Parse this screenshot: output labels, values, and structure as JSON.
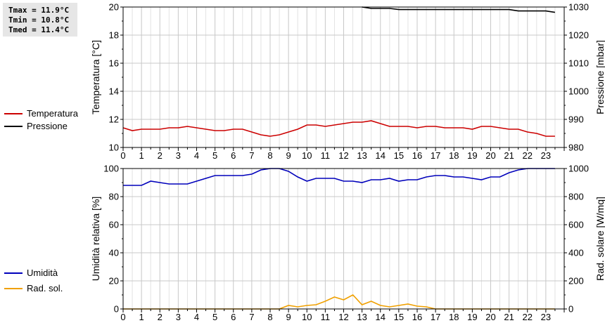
{
  "stats": {
    "tmax": "Tmax = 11.9°C",
    "tmin": "Tmin = 10.8°C",
    "tmed": "Tmed = 11.4°C"
  },
  "legend_top": [
    {
      "label": "Temperatura",
      "color": "#cc0000"
    },
    {
      "label": "Pressione",
      "color": "#000000"
    }
  ],
  "legend_bottom": [
    {
      "label": "Umidità",
      "color": "#0000bb"
    },
    {
      "label": "Rad. sol.",
      "color": "#f0a000"
    }
  ],
  "chart_data": [
    {
      "type": "line",
      "x_ticks": [
        0,
        1,
        2,
        3,
        4,
        5,
        6,
        7,
        8,
        9,
        10,
        11,
        12,
        13,
        14,
        15,
        16,
        17,
        18,
        19,
        20,
        21,
        22,
        23
      ],
      "xlim": [
        0,
        24
      ],
      "ylabel_left": "Temperatura [°C]",
      "ylim_left": [
        10,
        20
      ],
      "yticks_left": [
        10,
        12,
        14,
        16,
        18,
        20
      ],
      "ylabel_right": "Pressione [mbar]",
      "ylim_right": [
        980,
        1030
      ],
      "yticks_right": [
        980,
        990,
        1000,
        1010,
        1020,
        1030
      ],
      "grid": true,
      "series": [
        {
          "name": "Temperatura",
          "axis": "left",
          "color": "#cc0000",
          "x": [
            0,
            0.5,
            1,
            1.5,
            2,
            2.5,
            3,
            3.5,
            4,
            4.5,
            5,
            5.5,
            6,
            6.5,
            7,
            7.5,
            8,
            8.5,
            9,
            9.5,
            10,
            10.5,
            11,
            11.5,
            12,
            12.5,
            13,
            13.5,
            14,
            14.5,
            15,
            15.5,
            16,
            16.5,
            17,
            17.5,
            18,
            18.5,
            19,
            19.5,
            20,
            20.5,
            21,
            21.5,
            22,
            22.5,
            23,
            23.5
          ],
          "y": [
            11.4,
            11.2,
            11.3,
            11.3,
            11.3,
            11.4,
            11.4,
            11.5,
            11.4,
            11.3,
            11.2,
            11.2,
            11.3,
            11.3,
            11.1,
            10.9,
            10.8,
            10.9,
            11.1,
            11.3,
            11.6,
            11.6,
            11.5,
            11.6,
            11.7,
            11.8,
            11.8,
            11.9,
            11.7,
            11.5,
            11.5,
            11.5,
            11.4,
            11.5,
            11.5,
            11.4,
            11.4,
            11.4,
            11.3,
            11.5,
            11.5,
            11.4,
            11.3,
            11.3,
            11.1,
            11.0,
            10.8,
            10.8
          ]
        },
        {
          "name": "Pressione",
          "axis": "right",
          "color": "#000000",
          "x": [
            13,
            13.5,
            14,
            14.5,
            15,
            15.5,
            16,
            17,
            18,
            19,
            20,
            21,
            21.5,
            22,
            23,
            23.5
          ],
          "y": [
            1030,
            1029.5,
            1029.5,
            1029.5,
            1029.1,
            1029.1,
            1029.1,
            1029.1,
            1029.1,
            1029.1,
            1029.1,
            1029.1,
            1028.6,
            1028.6,
            1028.6,
            1028.1
          ]
        }
      ]
    },
    {
      "type": "line",
      "x_ticks": [
        0,
        1,
        2,
        3,
        4,
        5,
        6,
        7,
        8,
        9,
        10,
        11,
        12,
        13,
        14,
        15,
        16,
        17,
        18,
        19,
        20,
        21,
        22,
        23
      ],
      "xlim": [
        0,
        24
      ],
      "ylabel_left": "Umidità relativa [%]",
      "ylim_left": [
        0,
        100
      ],
      "yticks_left": [
        0,
        20,
        40,
        60,
        80,
        100
      ],
      "ylabel_right": "Rad. solare [W/mq]",
      "ylim_right": [
        0,
        1000
      ],
      "yticks_right": [
        0,
        200,
        400,
        600,
        800,
        1000
      ],
      "grid": true,
      "series": [
        {
          "name": "Umidità",
          "axis": "left",
          "color": "#0000bb",
          "x": [
            0,
            0.5,
            1,
            1.5,
            2,
            2.5,
            3,
            3.5,
            4,
            4.5,
            5,
            5.5,
            6,
            6.5,
            7,
            7.5,
            8,
            8.5,
            9,
            9.5,
            10,
            10.5,
            11,
            11.5,
            12,
            12.5,
            13,
            13.5,
            14,
            14.5,
            15,
            15.5,
            16,
            16.5,
            17,
            17.5,
            18,
            18.5,
            19,
            19.5,
            20,
            20.5,
            21,
            21.5,
            22,
            22.5,
            23,
            23.5
          ],
          "y": [
            88,
            88,
            88,
            91,
            90,
            89,
            89,
            89,
            91,
            93,
            95,
            95,
            95,
            95,
            96,
            99,
            100,
            100,
            98,
            94,
            91,
            93,
            93,
            93,
            91,
            91,
            90,
            92,
            92,
            93,
            91,
            92,
            92,
            94,
            95,
            95,
            94,
            94,
            93,
            92,
            94,
            94,
            97,
            99,
            100,
            100,
            100,
            100
          ]
        },
        {
          "name": "Rad. sol.",
          "axis": "right",
          "color": "#f0a000",
          "x": [
            0,
            1,
            2,
            3,
            4,
            5,
            6,
            7,
            8,
            8.5,
            9,
            9.5,
            10,
            10.5,
            11,
            11.5,
            12,
            12.5,
            13,
            13.5,
            14,
            14.5,
            15,
            15.5,
            16,
            16.5,
            17,
            18,
            19,
            20,
            21,
            22,
            23,
            23.5
          ],
          "y": [
            0,
            0,
            0,
            0,
            0,
            0,
            0,
            0,
            0,
            0,
            25,
            15,
            25,
            30,
            55,
            85,
            65,
            100,
            30,
            55,
            25,
            15,
            25,
            35,
            20,
            15,
            0,
            0,
            0,
            0,
            0,
            0,
            0,
            0
          ]
        }
      ]
    }
  ]
}
